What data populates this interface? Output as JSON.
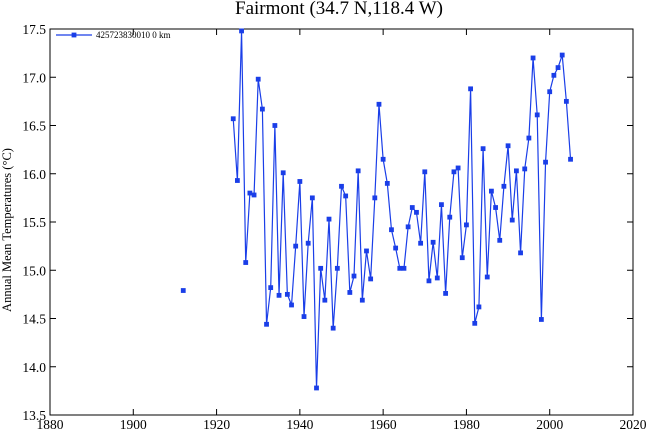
{
  "chart_data": {
    "type": "line",
    "title": "Fairmont (34.7 N,118.4 W)",
    "xlabel": "",
    "ylabel": "Annual Mean Temperatures (°C)",
    "xlim": [
      1880,
      2020
    ],
    "ylim": [
      13.5,
      17.5
    ],
    "xticks": [
      "1880",
      "1900",
      "1920",
      "1940",
      "1960",
      "1980",
      "2000",
      "2020"
    ],
    "yticks": [
      "13.5",
      "14.0",
      "14.5",
      "15.0",
      "15.5",
      "16.0",
      "16.5",
      "17.0",
      "17.5"
    ],
    "grid": false,
    "legend": "top-left",
    "colors": {
      "series": "#1a3ee8",
      "axis": "#000000"
    },
    "series": [
      {
        "name": "425723830010  0 km",
        "segments": [
          [
            [
              1912,
              14.79
            ]
          ],
          [
            [
              1924,
              16.57
            ],
            [
              1925,
              15.93
            ],
            [
              1926,
              17.48
            ],
            [
              1927,
              15.08
            ],
            [
              1928,
              15.8
            ],
            [
              1929,
              15.78
            ],
            [
              1930,
              16.98
            ],
            [
              1931,
              16.67
            ],
            [
              1932,
              14.44
            ],
            [
              1933,
              14.82
            ],
            [
              1934,
              16.5
            ],
            [
              1935,
              14.74
            ],
            [
              1936,
              16.01
            ],
            [
              1937,
              14.75
            ],
            [
              1938,
              14.64
            ],
            [
              1939,
              15.25
            ],
            [
              1940,
              15.92
            ],
            [
              1941,
              14.52
            ],
            [
              1942,
              15.28
            ],
            [
              1943,
              15.75
            ],
            [
              1944,
              13.78
            ],
            [
              1945,
              15.02
            ],
            [
              1946,
              14.69
            ],
            [
              1947,
              15.53
            ],
            [
              1948,
              14.4
            ],
            [
              1949,
              15.02
            ],
            [
              1950,
              15.87
            ],
            [
              1951,
              15.77
            ],
            [
              1952,
              14.77
            ],
            [
              1953,
              14.94
            ],
            [
              1954,
              16.03
            ],
            [
              1955,
              14.69
            ],
            [
              1956,
              15.2
            ],
            [
              1957,
              14.91
            ],
            [
              1958,
              15.75
            ],
            [
              1959,
              16.72
            ],
            [
              1960,
              16.15
            ],
            [
              1961,
              15.9
            ],
            [
              1962,
              15.42
            ],
            [
              1963,
              15.23
            ],
            [
              1964,
              15.02
            ],
            [
              1965,
              15.02
            ],
            [
              1966,
              15.45
            ],
            [
              1967,
              15.65
            ],
            [
              1968,
              15.6
            ],
            [
              1969,
              15.28
            ],
            [
              1970,
              16.02
            ],
            [
              1971,
              14.89
            ],
            [
              1972,
              15.29
            ],
            [
              1973,
              14.92
            ],
            [
              1974,
              15.68
            ],
            [
              1975,
              14.76
            ],
            [
              1976,
              15.55
            ],
            [
              1977,
              16.02
            ],
            [
              1978,
              16.06
            ],
            [
              1979,
              15.13
            ],
            [
              1980,
              15.47
            ],
            [
              1981,
              16.88
            ],
            [
              1982,
              14.45
            ],
            [
              1983,
              14.62
            ],
            [
              1984,
              16.26
            ],
            [
              1985,
              14.93
            ],
            [
              1986,
              15.82
            ],
            [
              1987,
              15.65
            ],
            [
              1988,
              15.31
            ],
            [
              1989,
              15.87
            ],
            [
              1990,
              16.29
            ],
            [
              1991,
              15.52
            ],
            [
              1992,
              16.03
            ],
            [
              1993,
              15.18
            ],
            [
              1994,
              16.05
            ],
            [
              1995,
              16.37
            ],
            [
              1996,
              17.2
            ],
            [
              1997,
              16.61
            ],
            [
              1998,
              14.49
            ],
            [
              1999,
              16.12
            ],
            [
              2000,
              16.85
            ],
            [
              2001,
              17.02
            ],
            [
              2002,
              17.1
            ],
            [
              2003,
              17.23
            ],
            [
              2004,
              16.75
            ],
            [
              2005,
              16.15
            ]
          ]
        ]
      }
    ]
  }
}
